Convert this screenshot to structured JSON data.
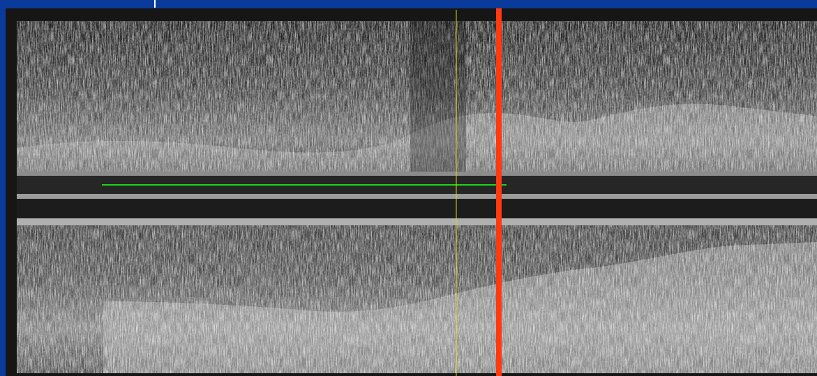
{
  "image": {
    "background_color": "#0a3a9c",
    "panel_color": "#161616",
    "markers": {
      "red_line_color": "#ff3a10",
      "yellow_line_color": "#d8e000",
      "green_line_color": "#19d619"
    }
  }
}
